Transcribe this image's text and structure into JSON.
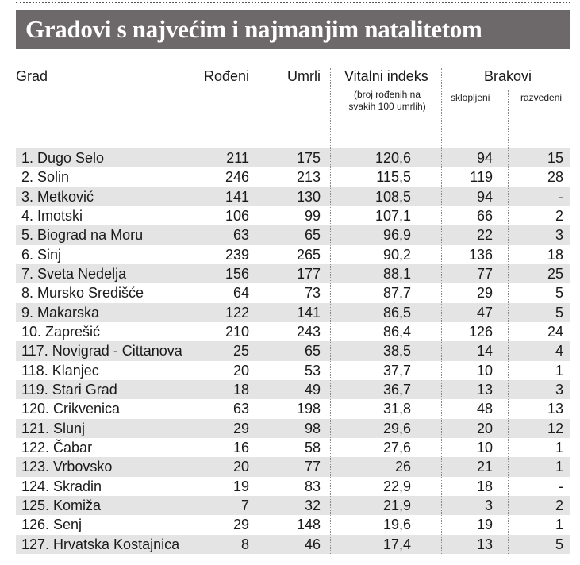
{
  "title": "Gradovi s najvećim i najmanjim natalitetom",
  "table": {
    "columns": [
      "Grad",
      "Rođeni",
      "Umrli",
      "Vitalni indeks",
      "Brakovi"
    ],
    "note": "(broj rođenih na svakih 100 umrlih)",
    "subcolumns": [
      "sklopljeni",
      "razvedeni"
    ],
    "rows": [
      [
        "1. Dugo Selo",
        "211",
        "175",
        "120,6",
        "94",
        "15"
      ],
      [
        "2. Solin",
        "246",
        "213",
        "115,5",
        "119",
        "28"
      ],
      [
        "3. Metković",
        "141",
        "130",
        "108,5",
        "94",
        "-"
      ],
      [
        "4. Imotski",
        "106",
        "99",
        "107,1",
        "66",
        "2"
      ],
      [
        "5. Biograd na Moru",
        "63",
        "65",
        "96,9",
        "22",
        "3"
      ],
      [
        "6. Sinj",
        "239",
        "265",
        "90,2",
        "136",
        "18"
      ],
      [
        "7. Sveta Nedelja",
        "156",
        "177",
        "88,1",
        "77",
        "25"
      ],
      [
        "8. Mursko Središće",
        "64",
        "73",
        "87,7",
        "29",
        "5"
      ],
      [
        "9. Makarska",
        "122",
        "141",
        "86,5",
        "47",
        "5"
      ],
      [
        "10. Zaprešić",
        "210",
        "243",
        "86,4",
        "126",
        "24"
      ],
      [
        "117. Novigrad - Cittanova",
        "25",
        "65",
        "38,5",
        "14",
        "4"
      ],
      [
        "118. Klanjec",
        "20",
        "53",
        "37,7",
        "10",
        "1"
      ],
      [
        "119. Stari Grad",
        "18",
        "49",
        "36,7",
        "13",
        "3"
      ],
      [
        "120. Crikvenica",
        "63",
        "198",
        "31,8",
        "48",
        "13"
      ],
      [
        "121. Slunj",
        "29",
        "98",
        "29,6",
        "20",
        "12"
      ],
      [
        "122. Čabar",
        "16",
        "58",
        "27,6",
        "10",
        "1"
      ],
      [
        "123. Vrbovsko",
        "20",
        "77",
        "26",
        "21",
        "1"
      ],
      [
        "124. Skradin",
        "19",
        "83",
        "22,9",
        "18",
        "-"
      ],
      [
        "125. Komiža",
        "7",
        "32",
        "21,9",
        "3",
        "2"
      ],
      [
        "126. Senj",
        "29",
        "148",
        "19,6",
        "19",
        "1"
      ],
      [
        "127. Hrvatska Kostajnica",
        "8",
        "46",
        "17,4",
        "13",
        "5"
      ]
    ]
  }
}
